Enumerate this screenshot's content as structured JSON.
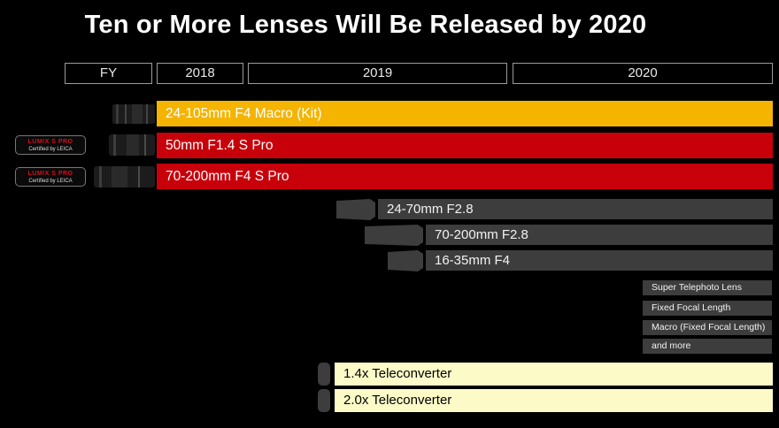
{
  "title": "Ten or More Lenses Will Be Released by 2020",
  "header": {
    "fy": "FY",
    "y2018": "2018",
    "y2019": "2019",
    "y2020": "2020"
  },
  "bars": {
    "kit": "24-105mm F4 Macro (Kit)",
    "s50": "50mm F1.4 S Pro",
    "s70200": "70-200mm F4 S Pro",
    "z2470": "24-70mm F2.8",
    "z70200": "70-200mm F2.8",
    "z1635": "16-35mm F4",
    "tele": "Super Telephoto Lens",
    "fixed": "Fixed Focal Length",
    "macro": "Macro (Fixed Focal Length)",
    "more": "and more",
    "tc14": "1.4x Teleconverter",
    "tc20": "2.0x Teleconverter"
  },
  "badge": {
    "line1": "LUMIX S PRO",
    "line2": "Certified by LEICA"
  },
  "colors": {
    "kit": "#f4b400",
    "sPro": "#c8000a",
    "planned": "#3d3d3d",
    "teleconverter": "#fcfbc8"
  }
}
